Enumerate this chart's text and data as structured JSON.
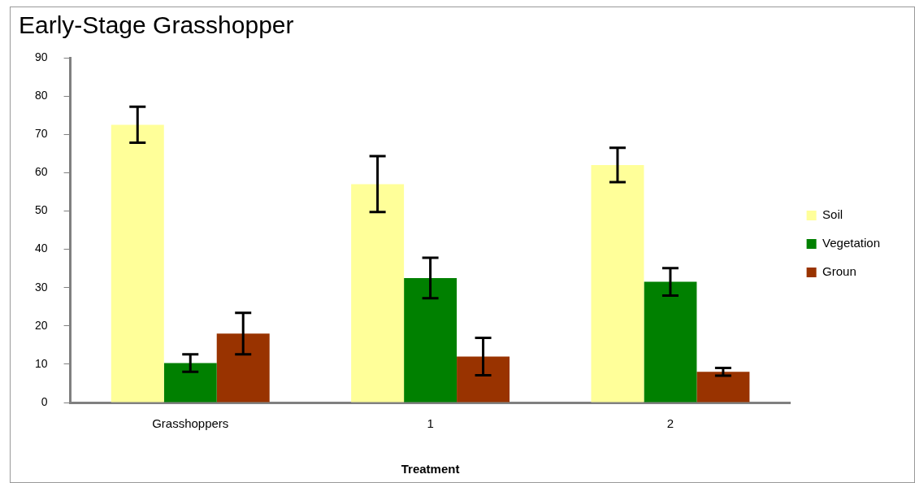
{
  "chart_data": {
    "type": "bar",
    "title": "Early-Stage Grasshopper",
    "xlabel": "Treatment",
    "categories": [
      "Grasshoppers",
      "1",
      "2"
    ],
    "series": [
      {
        "name": "Soil",
        "color": "#ffff99",
        "values": [
          72.5,
          57,
          62
        ],
        "errors": [
          4.7,
          7.3,
          4.5
        ]
      },
      {
        "name": "Vegetation",
        "color": "#008000",
        "values": [
          10.3,
          32.5,
          31.5
        ],
        "errors": [
          2.3,
          5.3,
          3.6
        ]
      },
      {
        "name": "Groun",
        "color": "#993300",
        "values": [
          18,
          12,
          8
        ],
        "errors": [
          5.4,
          4.9,
          1
        ]
      }
    ],
    "ylim": [
      0,
      90
    ],
    "yticks": [
      0,
      10,
      20,
      30,
      40,
      50,
      60,
      70,
      80,
      90
    ],
    "grid": false,
    "legend": "right"
  }
}
